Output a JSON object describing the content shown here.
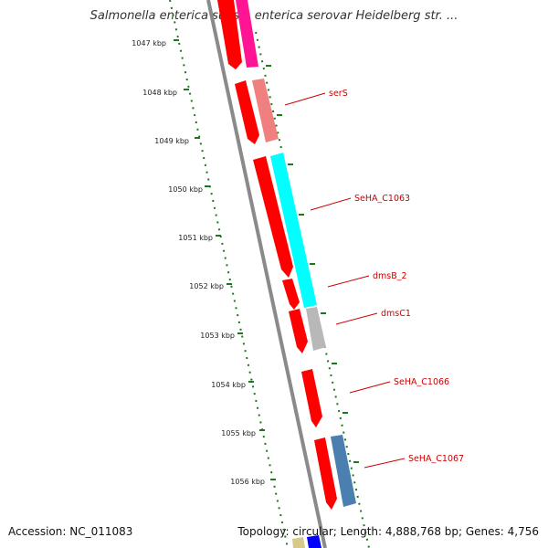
{
  "header": {
    "title": "Salmonella enterica subsp. enterica serovar Heidelberg str. ..."
  },
  "footer": {
    "accession": "Accession: NC_011083",
    "topology": "Topology: circular; Length: 4,888,768 bp; Genes: 4,756"
  },
  "ruler": {
    "ticks": [
      "1047 kbp",
      "1048 kbp",
      "1049 kbp",
      "1050 kbp",
      "1051 kbp",
      "1052 kbp",
      "1053 kbp",
      "1054 kbp",
      "1055 kbp",
      "1056 kbp"
    ]
  },
  "genes": {
    "labels": [
      "serS",
      "SeHA_C1063",
      "dmsB_2",
      "dmsC1",
      "SeHA_C1066",
      "SeHA_C1067"
    ]
  },
  "colors": {
    "cds": "#ff0000",
    "serS": "#f08080",
    "SeHA_C1063": "#00ffff",
    "dmsC1": "#b8b8b8",
    "SeHA_C1067": "#4a7fb0",
    "top_magenta": "#ff1493",
    "backbone": "#8a8a8a",
    "tick": "#1a7a1a",
    "label": "#cc0000"
  }
}
